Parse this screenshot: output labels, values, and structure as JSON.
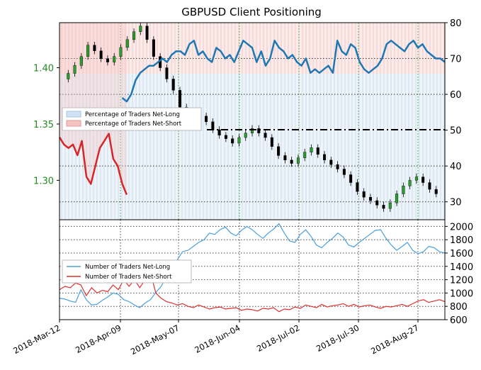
{
  "chart_data": [
    {
      "type": "line",
      "title": "GBPUSD Client Positioning",
      "x_tick_labels": [
        "2018-Mar-12",
        "2018-Apr-09",
        "2018-May-07",
        "2018-Jun-04",
        "2018-Jul-02",
        "2018-Jul-30",
        "2018-Aug-27"
      ],
      "left_axis": {
        "ticks": [
          1.3,
          1.35,
          1.4
        ],
        "tick_labels": [
          "1.30",
          "1.35",
          "1.40"
        ],
        "range": [
          1.265,
          1.44
        ],
        "color": "#228b22"
      },
      "right_axis": {
        "ticks": [
          30,
          40,
          50,
          60,
          70,
          80
        ],
        "range": [
          25,
          80
        ]
      },
      "reference_line": {
        "value": 50,
        "style": "dash-dot"
      },
      "legend": {
        "placement": "center-left",
        "entries": [
          {
            "label": "Percentage of Traders Net-Long",
            "color": "#1f77b4"
          },
          {
            "label": "Percentage of Traders Net-Short",
            "color": "#d62728"
          }
        ]
      },
      "series": [
        {
          "name": "Percentage of Traders Net-Long",
          "color": "#1f77b4",
          "x": [
            28,
            30,
            32,
            34,
            36,
            38,
            40,
            42,
            44,
            46,
            48,
            50,
            52,
            54,
            56,
            58,
            60,
            62,
            64,
            66,
            68,
            70,
            72,
            74,
            76,
            78,
            80,
            82,
            84,
            86,
            88,
            90,
            92,
            94,
            96,
            98,
            100,
            102,
            104,
            106,
            108,
            110,
            112,
            114,
            116,
            118,
            120,
            122,
            124,
            126,
            128,
            130,
            132,
            134,
            136,
            138,
            140,
            142,
            144,
            146,
            148,
            150,
            152,
            154,
            156,
            158,
            160,
            162,
            164,
            166,
            168,
            170,
            172
          ],
          "values": [
            59,
            58,
            60,
            64,
            66,
            67,
            68,
            68,
            69,
            70,
            69,
            71,
            72,
            72,
            71,
            74,
            75,
            71,
            72,
            70,
            69,
            73,
            72,
            70,
            71,
            69,
            72,
            75,
            74,
            73,
            69,
            72,
            68,
            70,
            75,
            73,
            72,
            70,
            71,
            69,
            68,
            70,
            66,
            67,
            66,
            67,
            68,
            66,
            75,
            72,
            71,
            74,
            73,
            69,
            67,
            66,
            67,
            68,
            70,
            74,
            75,
            74,
            73,
            72,
            74,
            75,
            73,
            74,
            72,
            71,
            70,
            70,
            69
          ]
        },
        {
          "name": "Percentage of Traders Net-Short",
          "color": "#d62728",
          "x": [
            0,
            2,
            4,
            6,
            8,
            10,
            12,
            14,
            16,
            18,
            20,
            22,
            24,
            26,
            28,
            30
          ],
          "values": [
            48,
            46,
            45,
            46,
            43,
            47,
            37,
            35,
            40,
            45,
            47,
            49,
            42,
            40,
            35,
            32
          ]
        }
      ],
      "price": {
        "name": "GBPUSD",
        "y": [
          1.39,
          1.395,
          1.402,
          1.41,
          1.42,
          1.415,
          1.408,
          1.405,
          1.41,
          1.418,
          1.425,
          1.432,
          1.437,
          1.425,
          1.41,
          1.4,
          1.39,
          1.38,
          1.365,
          1.355,
          1.35,
          1.357,
          1.352,
          1.345,
          1.34,
          1.337,
          1.333,
          1.338,
          1.342,
          1.346,
          1.342,
          1.338,
          1.33,
          1.322,
          1.318,
          1.315,
          1.32,
          1.325,
          1.329,
          1.323,
          1.318,
          1.314,
          1.31,
          1.305,
          1.298,
          1.29,
          1.285,
          1.282,
          1.278,
          1.275,
          1.28,
          1.288,
          1.295,
          1.3,
          1.303,
          1.298,
          1.292,
          1.288
        ]
      }
    },
    {
      "type": "line",
      "y_ticks": [
        600,
        800,
        1000,
        1200,
        1400,
        1600,
        1800,
        2000
      ],
      "y_range": [
        600,
        2100
      ],
      "legend": {
        "placement": "center-left",
        "entries": [
          {
            "label": "Number of Traders Net-Long",
            "color": "#4a9fdc"
          },
          {
            "label": "Number of Traders Net-Short",
            "color": "#e0302f"
          }
        ]
      },
      "series": [
        {
          "name": "Number of Traders Net-Long",
          "color": "#4a9fdc",
          "values": [
            920,
            910,
            880,
            860,
            1050,
            900,
            820,
            830,
            890,
            940,
            1000,
            980,
            900,
            870,
            820,
            780,
            850,
            900,
            1010,
            1100,
            1250,
            1350,
            1500,
            1620,
            1640,
            1700,
            1760,
            1800,
            1900,
            1880,
            1950,
            1990,
            1900,
            1860,
            1940,
            2000,
            1950,
            1880,
            1820,
            1900,
            1960,
            2040,
            1900,
            1780,
            1760,
            1880,
            1950,
            1850,
            1720,
            1680,
            1760,
            1820,
            1900,
            1840,
            1720,
            1690,
            1760,
            1820,
            1880,
            1940,
            1950,
            1820,
            1720,
            1640,
            1700,
            1760,
            1640,
            1590,
            1620,
            1700,
            1680,
            1620,
            1600
          ]
        },
        {
          "name": "Number of Traders Net-Short",
          "color": "#e0302f",
          "values": [
            1050,
            1100,
            1080,
            1150,
            1120,
            960,
            1080,
            1000,
            1040,
            1020,
            1120,
            1050,
            1200,
            1100,
            1200,
            1080,
            1200,
            1300,
            1000,
            920,
            870,
            850,
            820,
            840,
            800,
            780,
            820,
            790,
            760,
            780,
            790,
            760,
            770,
            780,
            740,
            760,
            750,
            730,
            770,
            760,
            780,
            720,
            760,
            750,
            790,
            770,
            820,
            800,
            780,
            830,
            790,
            810,
            820,
            840,
            800,
            830,
            790,
            810,
            820,
            790,
            770,
            800,
            790,
            810,
            830,
            800,
            840,
            880,
            900,
            860,
            880,
            900,
            870
          ]
        }
      ]
    }
  ]
}
